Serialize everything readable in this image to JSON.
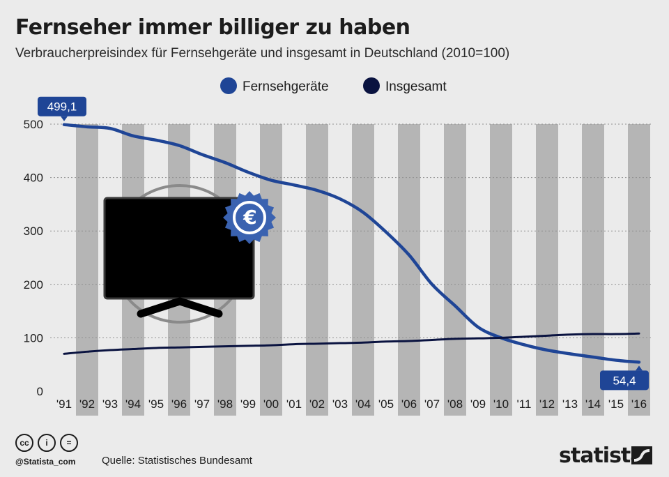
{
  "title": "Fernseher immer billiger zu haben",
  "subtitle": "Verbraucherpreisindex für Fernsehgeräte und insgesamt in Deutschland (2010=100)",
  "footer": {
    "handle": "@Statista_com",
    "source": "Quelle: Statistisches Bundesamt",
    "brand": "statista",
    "license_icons": [
      "creative-commons-icon",
      "attribution-icon",
      "no-derivatives-icon"
    ]
  },
  "colors": {
    "fernseh": "#1f4596",
    "insgesamt": "#0a1340",
    "stripe": "#b5b5b5",
    "background": "#ebebeb",
    "tv": "#000000",
    "euro_badge": "#3a62b0"
  },
  "chart_data": {
    "type": "line",
    "x": [
      "'91",
      "'92",
      "'93",
      "'94",
      "'95",
      "'96",
      "'97",
      "'98",
      "'99",
      "'00",
      "'01",
      "'02",
      "'03",
      "'04",
      "'05",
      "'06",
      "'07",
      "'08",
      "'09",
      "'10",
      "'11",
      "'12",
      "'13",
      "'14",
      "'15",
      "'16"
    ],
    "series": [
      {
        "name": "Fernsehgeräte",
        "values": [
          499.1,
          495,
          492,
          478,
          470,
          460,
          443,
          428,
          410,
          395,
          386,
          376,
          360,
          335,
          298,
          255,
          200,
          160,
          120,
          100,
          87,
          77,
          70,
          64,
          58,
          54.4
        ]
      },
      {
        "name": "Insgesamt",
        "values": [
          70,
          74,
          77,
          79,
          81,
          82,
          83,
          84,
          85,
          86,
          88,
          89,
          90,
          91,
          93,
          94,
          96,
          98,
          99,
          100,
          102,
          104,
          106,
          107,
          107,
          108
        ]
      }
    ],
    "annotations": [
      {
        "series": 0,
        "index": 0,
        "label": "499,1"
      },
      {
        "series": 0,
        "index": 25,
        "label": "54,4"
      }
    ],
    "yticks": [
      0,
      100,
      200,
      300,
      400,
      500
    ],
    "ylim": [
      0,
      500
    ],
    "grid": true,
    "legend_position": "top-center"
  }
}
